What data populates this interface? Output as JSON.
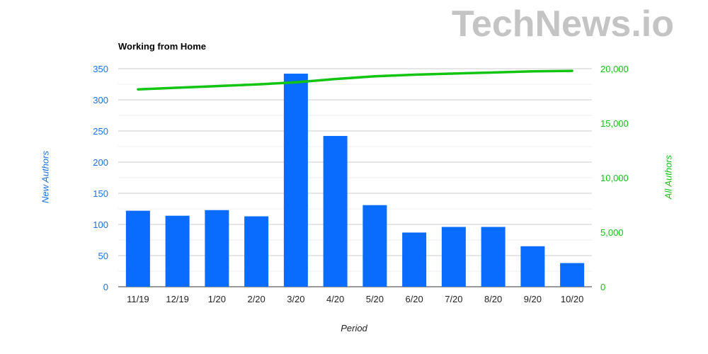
{
  "watermark": "TechNews.io",
  "chart_data": {
    "type": "bar",
    "title": "Working from Home",
    "xlabel": "Period",
    "ylabel": "New Authors",
    "y2label": "All Authors",
    "categories": [
      "11/19",
      "12/19",
      "1/20",
      "2/20",
      "3/20",
      "4/20",
      "5/20",
      "6/20",
      "7/20",
      "8/20",
      "9/20",
      "10/20"
    ],
    "series": [
      {
        "name": "New Authors",
        "type": "bar",
        "axis": "left",
        "color": "#0a6cff",
        "values": [
          122,
          114,
          123,
          113,
          342,
          242,
          131,
          87,
          96,
          96,
          65,
          38
        ]
      },
      {
        "name": "All Authors",
        "type": "line",
        "axis": "right",
        "color": "#11c511",
        "values": [
          18100,
          18250,
          18400,
          18550,
          18750,
          19050,
          19300,
          19450,
          19550,
          19650,
          19750,
          19800
        ]
      }
    ],
    "ylim": [
      0,
      350
    ],
    "yticks": [
      0,
      50,
      100,
      150,
      200,
      250,
      300,
      350
    ],
    "y2lim": [
      0,
      20000
    ],
    "y2ticks": [
      "0",
      "5,000",
      "10,000",
      "15,000",
      "20,000"
    ],
    "y2tick_values": [
      0,
      5000,
      10000,
      15000,
      20000
    ],
    "grid": true,
    "legend": "none"
  }
}
